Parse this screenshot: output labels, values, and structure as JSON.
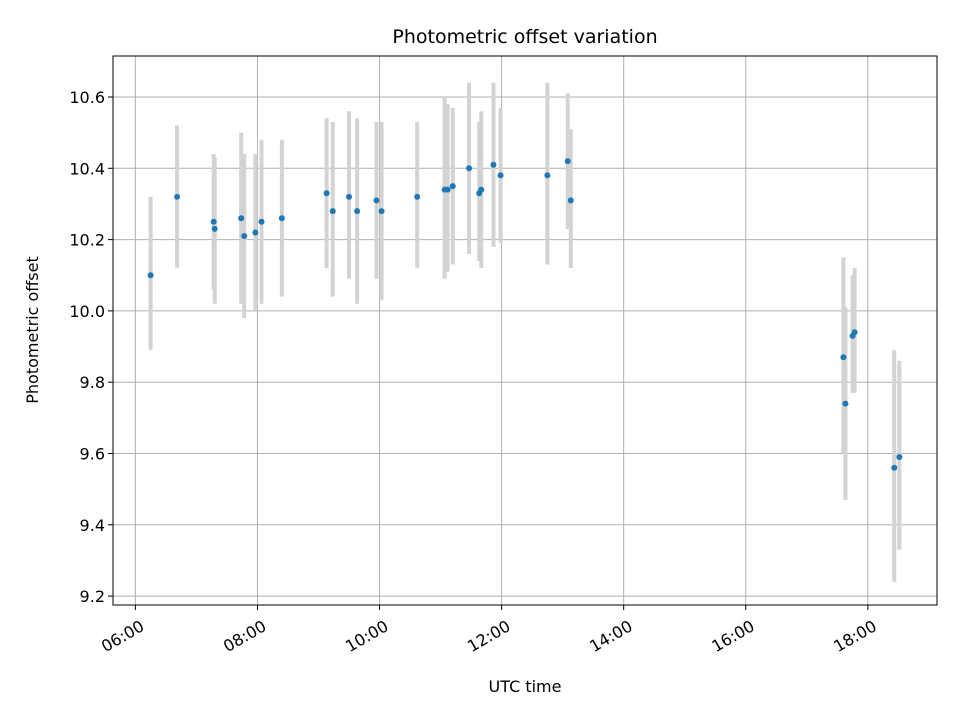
{
  "chart_data": {
    "type": "scatter",
    "title": "Photometric offset variation",
    "xlabel": "UTC time",
    "ylabel": "Photometric offset",
    "xlim": [
      "05:38",
      "19:08"
    ],
    "ylim": [
      9.175,
      10.715
    ],
    "x_ticks": [
      "06:00",
      "08:00",
      "10:00",
      "12:00",
      "14:00",
      "16:00",
      "18:00"
    ],
    "y_ticks": [
      9.2,
      9.4,
      9.6,
      9.8,
      10.0,
      10.2,
      10.4,
      10.6
    ],
    "grid": true,
    "colors": {
      "point": "#1f77b4",
      "errorbar": "#d3d3d3",
      "grid": "#b0b0b0"
    },
    "series": [
      {
        "points": [
          {
            "t": "06:15",
            "y": 10.1,
            "lo": 9.89,
            "hi": 10.32
          },
          {
            "t": "06:41",
            "y": 10.32,
            "lo": 10.12,
            "hi": 10.52
          },
          {
            "t": "07:17",
            "y": 10.25,
            "lo": 10.06,
            "hi": 10.44
          },
          {
            "t": "07:18",
            "y": 10.23,
            "lo": 10.02,
            "hi": 10.43
          },
          {
            "t": "07:44",
            "y": 10.26,
            "lo": 10.02,
            "hi": 10.5
          },
          {
            "t": "07:47",
            "y": 10.21,
            "lo": 9.98,
            "hi": 10.44
          },
          {
            "t": "07:58",
            "y": 10.22,
            "lo": 10.0,
            "hi": 10.44
          },
          {
            "t": "08:04",
            "y": 10.25,
            "lo": 10.02,
            "hi": 10.48
          },
          {
            "t": "08:24",
            "y": 10.26,
            "lo": 10.04,
            "hi": 10.48
          },
          {
            "t": "09:08",
            "y": 10.33,
            "lo": 10.12,
            "hi": 10.54
          },
          {
            "t": "09:14",
            "y": 10.28,
            "lo": 10.04,
            "hi": 10.53
          },
          {
            "t": "09:30",
            "y": 10.32,
            "lo": 10.09,
            "hi": 10.56
          },
          {
            "t": "09:38",
            "y": 10.28,
            "lo": 10.02,
            "hi": 10.54
          },
          {
            "t": "09:57",
            "y": 10.31,
            "lo": 10.09,
            "hi": 10.53
          },
          {
            "t": "10:02",
            "y": 10.28,
            "lo": 10.03,
            "hi": 10.53
          },
          {
            "t": "10:37",
            "y": 10.32,
            "lo": 10.12,
            "hi": 10.53
          },
          {
            "t": "11:04",
            "y": 10.34,
            "lo": 10.09,
            "hi": 10.6
          },
          {
            "t": "11:07",
            "y": 10.34,
            "lo": 10.11,
            "hi": 10.58
          },
          {
            "t": "11:12",
            "y": 10.35,
            "lo": 10.13,
            "hi": 10.57
          },
          {
            "t": "11:28",
            "y": 10.4,
            "lo": 10.16,
            "hi": 10.64
          },
          {
            "t": "11:38",
            "y": 10.33,
            "lo": 10.14,
            "hi": 10.53
          },
          {
            "t": "11:40",
            "y": 10.34,
            "lo": 10.12,
            "hi": 10.56
          },
          {
            "t": "11:52",
            "y": 10.41,
            "lo": 10.18,
            "hi": 10.64
          },
          {
            "t": "11:59",
            "y": 10.38,
            "lo": 10.19,
            "hi": 10.57
          },
          {
            "t": "12:45",
            "y": 10.38,
            "lo": 10.13,
            "hi": 10.64
          },
          {
            "t": "13:05",
            "y": 10.42,
            "lo": 10.23,
            "hi": 10.61
          },
          {
            "t": "13:08",
            "y": 10.31,
            "lo": 10.12,
            "hi": 10.51
          },
          {
            "t": "17:36",
            "y": 9.87,
            "lo": 9.6,
            "hi": 10.15
          },
          {
            "t": "17:38",
            "y": 9.74,
            "lo": 9.47,
            "hi": 10.01
          },
          {
            "t": "17:45",
            "y": 9.93,
            "lo": 9.77,
            "hi": 10.1
          },
          {
            "t": "17:47",
            "y": 9.94,
            "lo": 9.77,
            "hi": 10.12
          },
          {
            "t": "18:26",
            "y": 9.56,
            "lo": 9.24,
            "hi": 9.89
          },
          {
            "t": "18:31",
            "y": 9.59,
            "lo": 9.33,
            "hi": 9.86
          }
        ]
      }
    ]
  }
}
